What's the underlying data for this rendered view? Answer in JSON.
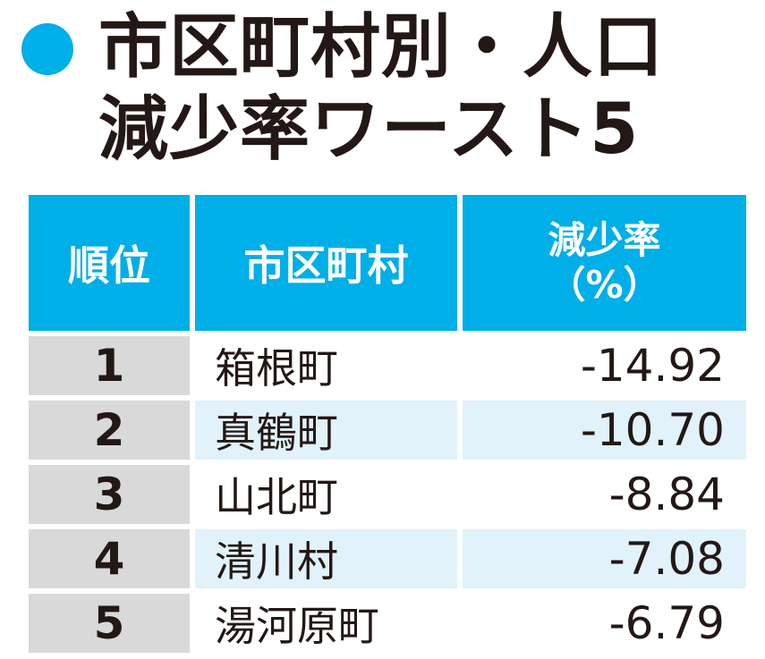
{
  "title": {
    "line1": "市区町村別・人口",
    "line2": "減少率ワースト5"
  },
  "colors": {
    "accent": "#00aee8",
    "rank_cell": "#d9d9d9",
    "alt_row": "#e1f2fb"
  },
  "chart_data": {
    "type": "table",
    "columns": [
      "順位",
      "市区町村",
      "減少率",
      "（%）"
    ],
    "rows": [
      {
        "rank": "1",
        "city": "箱根町",
        "rate": "-14.92"
      },
      {
        "rank": "2",
        "city": "真鶴町",
        "rate": "-10.70"
      },
      {
        "rank": "3",
        "city": "山北町",
        "rate": "-8.84"
      },
      {
        "rank": "4",
        "city": "清川村",
        "rate": "-7.08"
      },
      {
        "rank": "5",
        "city": "湯河原町",
        "rate": "-6.79"
      }
    ]
  }
}
